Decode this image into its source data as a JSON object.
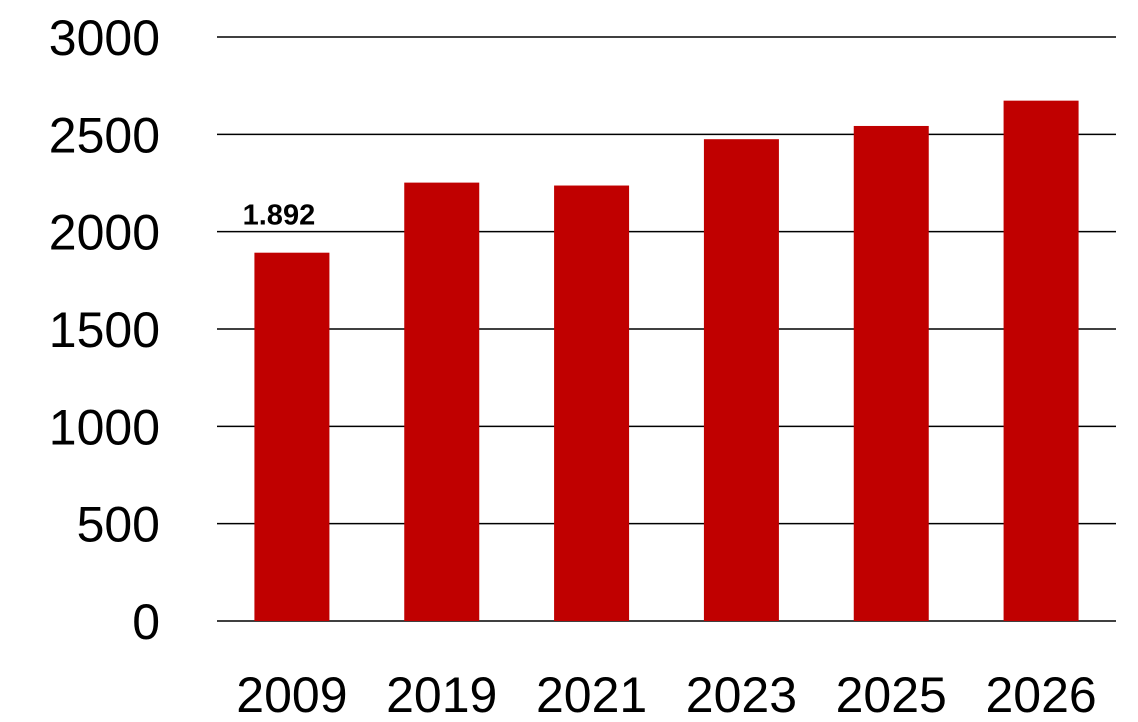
{
  "chart_data": {
    "type": "bar",
    "categories": [
      "2009",
      "2019",
      "2021",
      "2023",
      "2025",
      "2026"
    ],
    "values": [
      1892,
      2252,
      2237,
      2475,
      2543,
      2673
    ],
    "data_labels": [
      "1.892",
      "",
      "",
      "",
      "",
      ""
    ],
    "yticks": [
      0,
      500,
      1000,
      1500,
      2000,
      2500,
      3000
    ],
    "ylim": [
      0,
      3000
    ],
    "title": "",
    "xlabel": "",
    "ylabel": "",
    "grid": true,
    "legend": "none",
    "colors": {
      "bar": "#c00000",
      "grid": "#000000",
      "text": "#000000"
    }
  }
}
